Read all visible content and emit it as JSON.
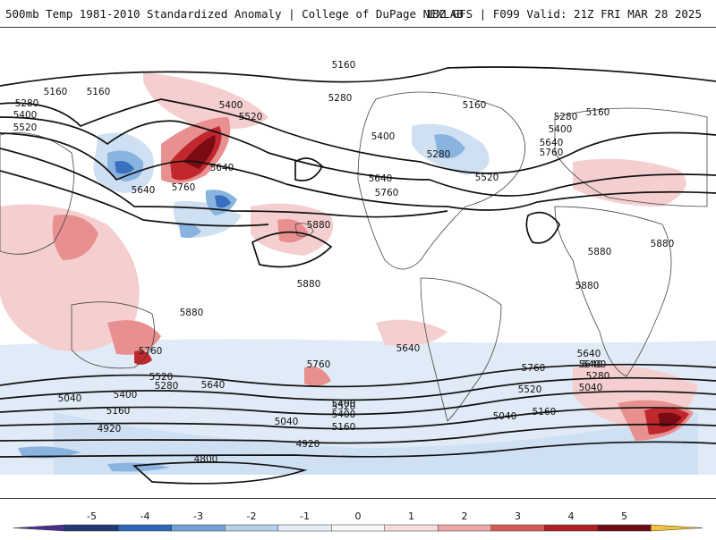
{
  "header": {
    "title": "500mb Temp 1981-2010 Standardized Anomaly | College of DuPage NEXLAB",
    "run_info": "18Z GFS | F099 Valid: 21Z FRI MAR 28 2025"
  },
  "colors": {
    "neg_strong": "#3a6fbf",
    "neg_mid": "#8ab4e0",
    "neg_light": "#cfe0f2",
    "pos_light": "#f5cfcf",
    "pos_mid": "#e89090",
    "pos_strong": "#c0282d",
    "pos_extreme": "#7a0a14",
    "contour": "#111111"
  },
  "contour_labels": {
    "nh_west": [
      "5280",
      "5400",
      "5520",
      "5160",
      "5160"
    ],
    "nh_top": "5160",
    "nh_pacific": [
      "5400",
      "5520",
      "5280",
      "5640",
      "5760",
      "5640"
    ],
    "nh_america": [
      "5160",
      "5280",
      "5400",
      "5640",
      "5760",
      "5520"
    ],
    "nh_atlantic": [
      "5280",
      "5400",
      "5640",
      "5760",
      "5160"
    ],
    "subtropical": [
      "5880",
      "5880",
      "5880",
      "5880",
      "5880",
      "5880"
    ],
    "sh_row1": [
      "5760",
      "5640",
      "5760",
      "5640",
      "5760",
      "5640"
    ],
    "sh_row2": [
      "5520",
      "5280",
      "5400",
      "5640",
      "5520",
      "5400",
      "5280",
      "5040"
    ],
    "sh_row3": [
      "5040",
      "5400",
      "5160",
      "5520",
      "5400",
      "5160",
      "5040",
      "5160"
    ],
    "sh_row4": [
      "4920",
      "5040",
      "4920",
      "4800"
    ]
  },
  "colorbar": {
    "ticks": [
      "-5",
      "-4",
      "-3",
      "-2",
      "-1",
      "0",
      "1",
      "2",
      "3",
      "4",
      "5"
    ],
    "colors": [
      "#4a2f8a",
      "#1f3a73",
      "#2d68b7",
      "#6ea2d8",
      "#b2cfeb",
      "#e4eef8",
      "#f7f7f7",
      "#f6dcdc",
      "#eca8a8",
      "#d45a5a",
      "#b01f26",
      "#6e0c14",
      "#f2c23a"
    ]
  }
}
